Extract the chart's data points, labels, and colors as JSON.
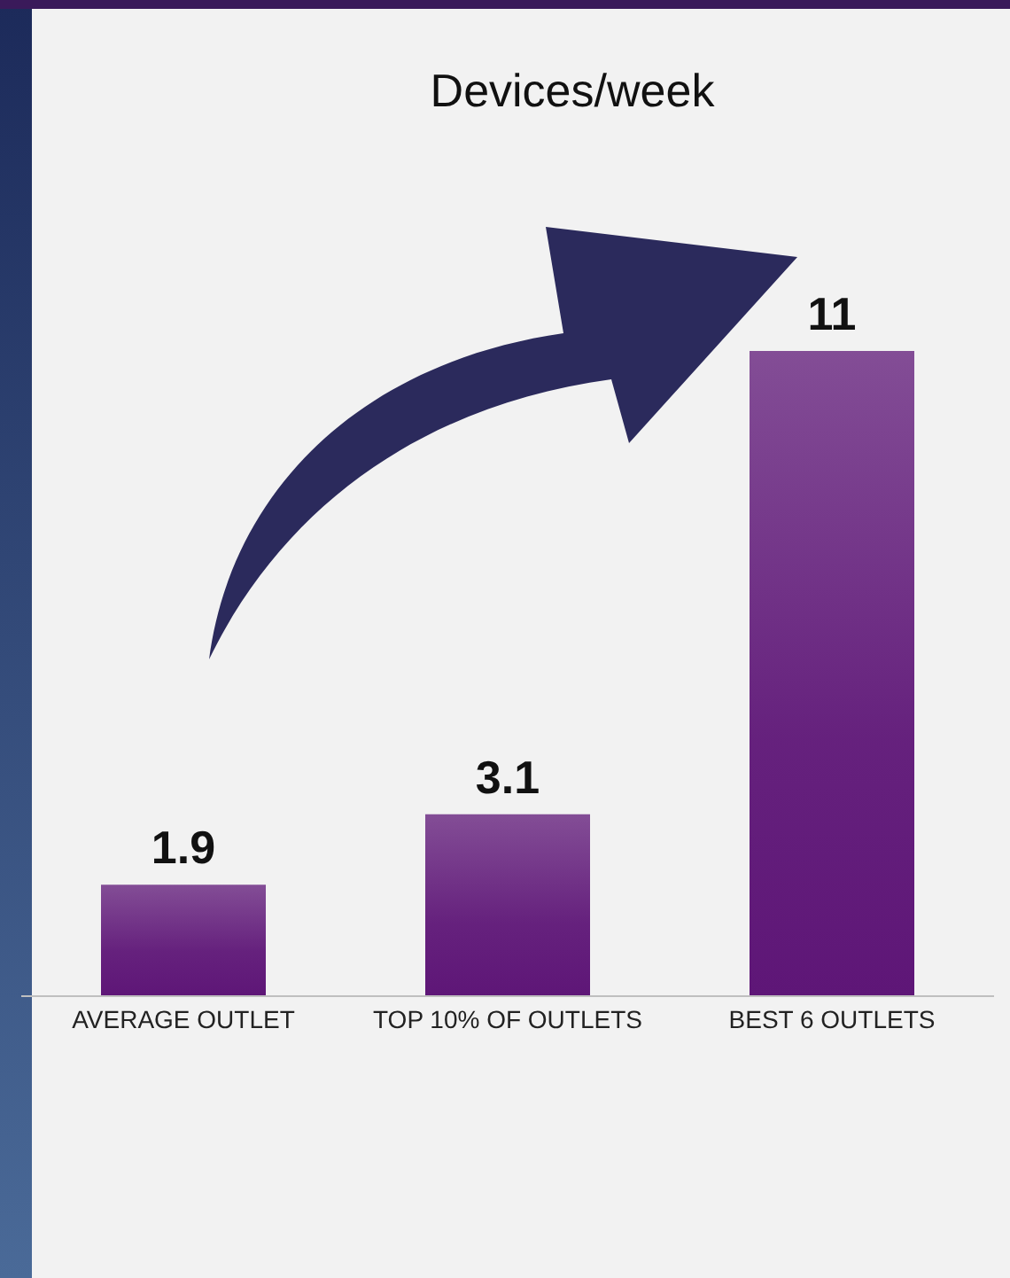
{
  "chart_data": {
    "type": "bar",
    "title": "Devices/week",
    "categories": [
      "AVERAGE OUTLET",
      "TOP 10% OF OUTLETS",
      "BEST 6 OUTLETS"
    ],
    "values": [
      1.9,
      3.1,
      11
    ],
    "color": "#5e1677",
    "data_labels": true,
    "grid": false,
    "legend": false
  }
}
